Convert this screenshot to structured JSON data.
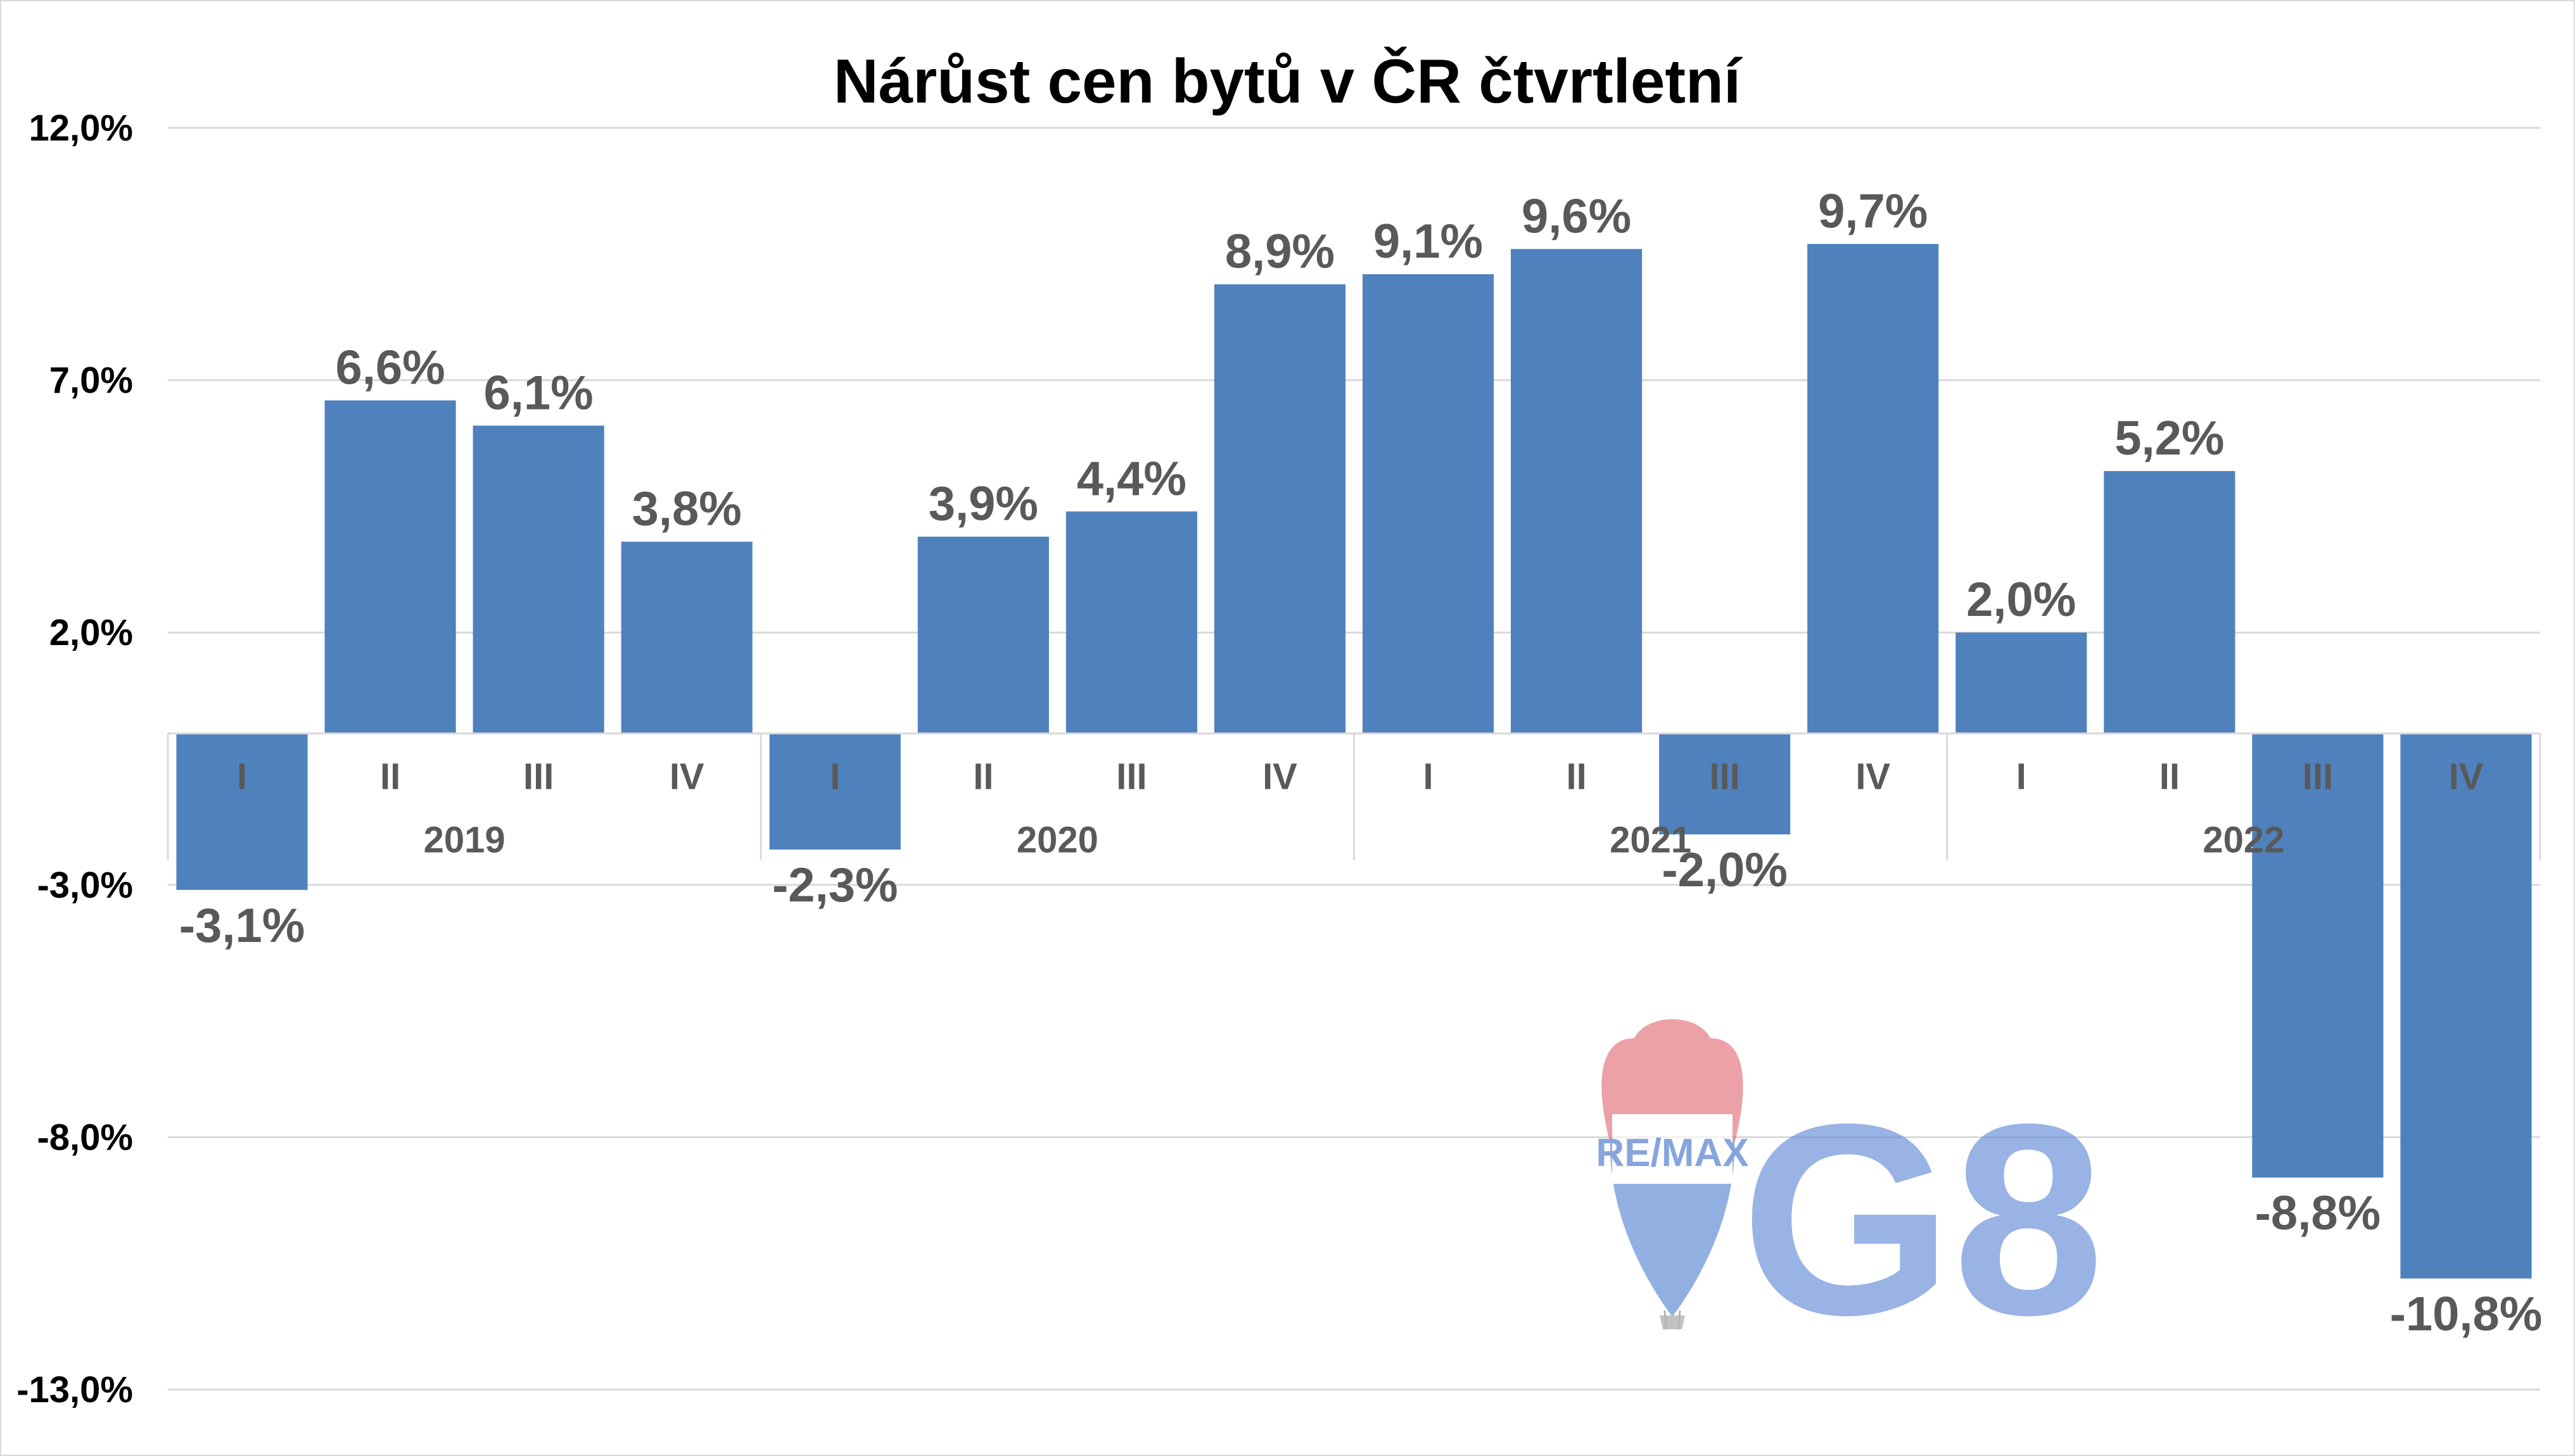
{
  "chart_data": {
    "type": "bar",
    "title": "Nárůst cen bytů v ČR čtvrtletní",
    "groups": [
      {
        "year": "2019",
        "quarters": [
          "I",
          "II",
          "III",
          "IV"
        ]
      },
      {
        "year": "2020",
        "quarters": [
          "I",
          "II",
          "III",
          "IV"
        ]
      },
      {
        "year": "2021",
        "quarters": [
          "I",
          "II",
          "III",
          "IV"
        ]
      },
      {
        "year": "2022",
        "quarters": [
          "I",
          "II",
          "III",
          "IV"
        ]
      }
    ],
    "values": [
      -3.1,
      6.6,
      6.1,
      3.8,
      -2.3,
      3.9,
      4.4,
      8.9,
      9.1,
      9.6,
      -2.0,
      9.7,
      2.0,
      5.2,
      -8.8,
      -10.8
    ],
    "labels": [
      "-3,1%",
      "6,6%",
      "6,1%",
      "3,8%",
      "-2,3%",
      "3,9%",
      "4,4%",
      "8,9%",
      "9,1%",
      "9,6%",
      "-2,0%",
      "9,7%",
      "2,0%",
      "5,2%",
      "-8,8%",
      "-10,8%"
    ],
    "yticks": [
      12,
      7,
      2,
      -3,
      -8,
      -13
    ],
    "ytick_labels": [
      "12,0%",
      "7,0%",
      "2,0%",
      "-3,0%",
      "-8,0%",
      "-13,0%"
    ],
    "ylim": [
      -13,
      12
    ],
    "grid": true,
    "bar_color": "#4f81bd"
  },
  "logo": {
    "brand": "RE/MAX",
    "mark": "G8"
  }
}
